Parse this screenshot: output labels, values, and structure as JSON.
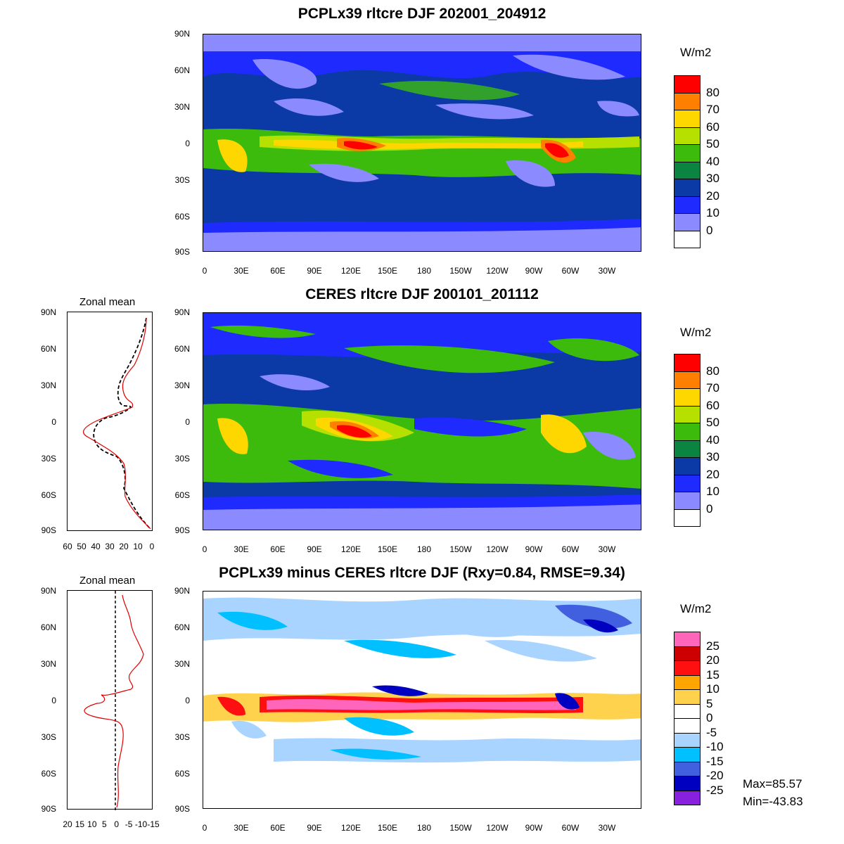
{
  "panels": [
    {
      "title": "PCPLx39 rltcre DJF 202001_204912",
      "unit": "W/m2",
      "colorbar": {
        "labels": [
          "80",
          "70",
          "60",
          "50",
          "40",
          "30",
          "20",
          "10",
          "0"
        ],
        "colors": [
          "#ff0000",
          "#ff7f00",
          "#ffd700",
          "#b6e000",
          "#3cbb0c",
          "#0a8440",
          "#0b3aa6",
          "#1f2aff",
          "#8b8bff",
          "#ffffff"
        ]
      }
    },
    {
      "title": "CERES rltcre DJF 200101_201112",
      "unit": "W/m2",
      "colorbar": {
        "labels": [
          "80",
          "70",
          "60",
          "50",
          "40",
          "30",
          "20",
          "10",
          "0"
        ],
        "colors": [
          "#ff0000",
          "#ff7f00",
          "#ffd700",
          "#b6e000",
          "#3cbb0c",
          "#0a8440",
          "#0b3aa6",
          "#1f2aff",
          "#8b8bff",
          "#ffffff"
        ]
      },
      "zonal": {
        "title": "Zonal mean",
        "x_ticks": [
          "60",
          "50",
          "40",
          "30",
          "20",
          "10",
          "0"
        ]
      }
    },
    {
      "title": "PCPLx39 minus CERES rltcre DJF (Rxy=0.84, RMSE=9.34)",
      "unit": "W/m2",
      "colorbar": {
        "labels": [
          "25",
          "20",
          "15",
          "10",
          "5",
          "0",
          "-5",
          "-10",
          "-15",
          "-20",
          "-25"
        ],
        "colors": [
          "#ff66bb",
          "#cc0000",
          "#ff1010",
          "#ffa500",
          "#ffd24d",
          "#ffffff",
          "#ffffff",
          "#a8d4ff",
          "#00c0ff",
          "#4060e0",
          "#0000c0",
          "#8820e0"
        ]
      },
      "zonal": {
        "title": "Zonal mean",
        "x_ticks": [
          "20",
          "15",
          "10",
          "5",
          "0",
          "-5",
          "-10",
          "-15"
        ]
      },
      "stats": {
        "max": "Max=85.57",
        "min": "Min=-43.83"
      }
    }
  ],
  "lat_labels": [
    "90N",
    "60N",
    "30N",
    "0",
    "30S",
    "60S",
    "90S"
  ],
  "lon_labels": [
    "0",
    "30E",
    "60E",
    "90E",
    "120E",
    "150E",
    "180",
    "150W",
    "120W",
    "90W",
    "60W",
    "30W"
  ]
}
